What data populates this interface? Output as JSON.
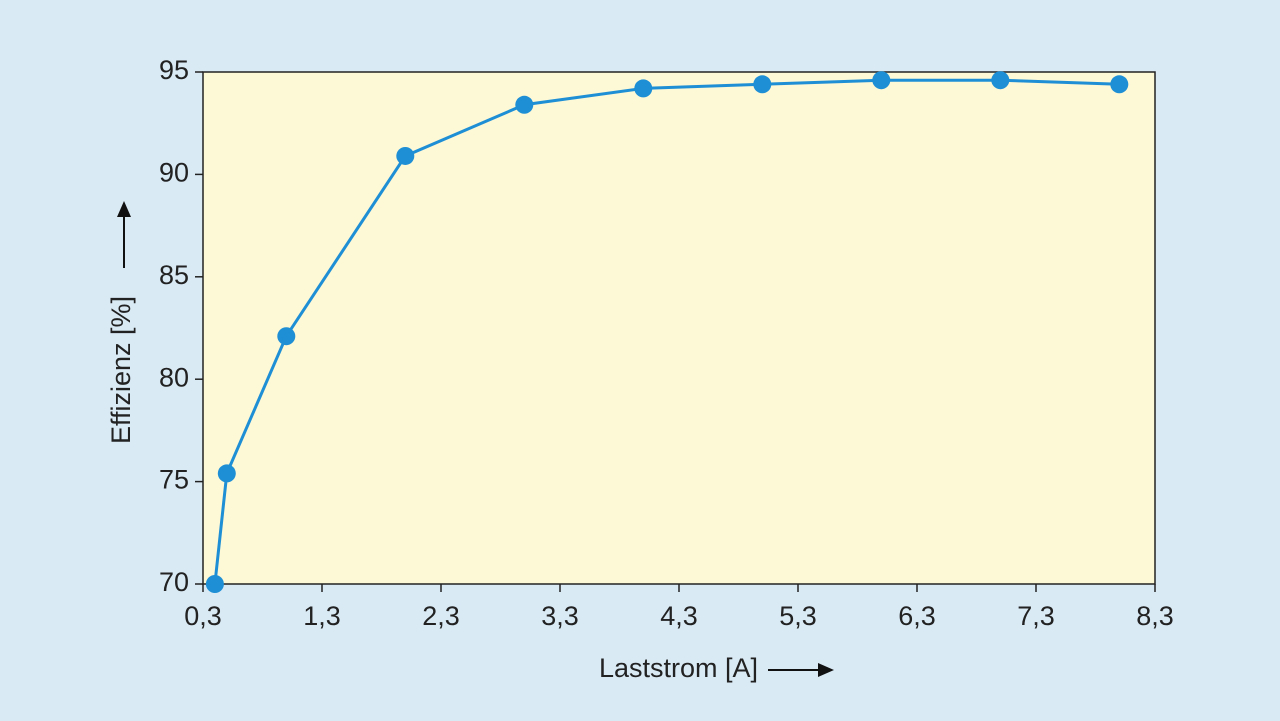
{
  "chart_data": {
    "type": "line",
    "x_label": "Laststrom [A]",
    "y_label": "Effizienz [%]",
    "x": [
      0.4,
      0.5,
      1.0,
      2.0,
      3.0,
      4.0,
      5.0,
      6.0,
      7.0,
      8.0
    ],
    "series": [
      {
        "color": "#1e8fd5",
        "values": [
          70,
          75.4,
          82.1,
          90.9,
          93.4,
          94.2,
          94.4,
          94.6,
          94.6,
          94.4
        ]
      }
    ],
    "xlim": [
      0.3,
      8.3
    ],
    "xticks": [
      {
        "value": 0.3,
        "label": "0,3"
      },
      {
        "value": 1.3,
        "label": "1,3"
      },
      {
        "value": 2.3,
        "label": "2,3"
      },
      {
        "value": 3.3,
        "label": "3,3"
      },
      {
        "value": 4.3,
        "label": "4,3"
      },
      {
        "value": 5.3,
        "label": "5,3"
      },
      {
        "value": 6.3,
        "label": "6,3"
      },
      {
        "value": 7.3,
        "label": "7,3"
      },
      {
        "value": 8.3,
        "label": "8,3"
      }
    ],
    "ylim": [
      70,
      95
    ],
    "yticks": [
      70,
      75,
      80,
      85,
      90,
      95
    ],
    "grid": false
  }
}
